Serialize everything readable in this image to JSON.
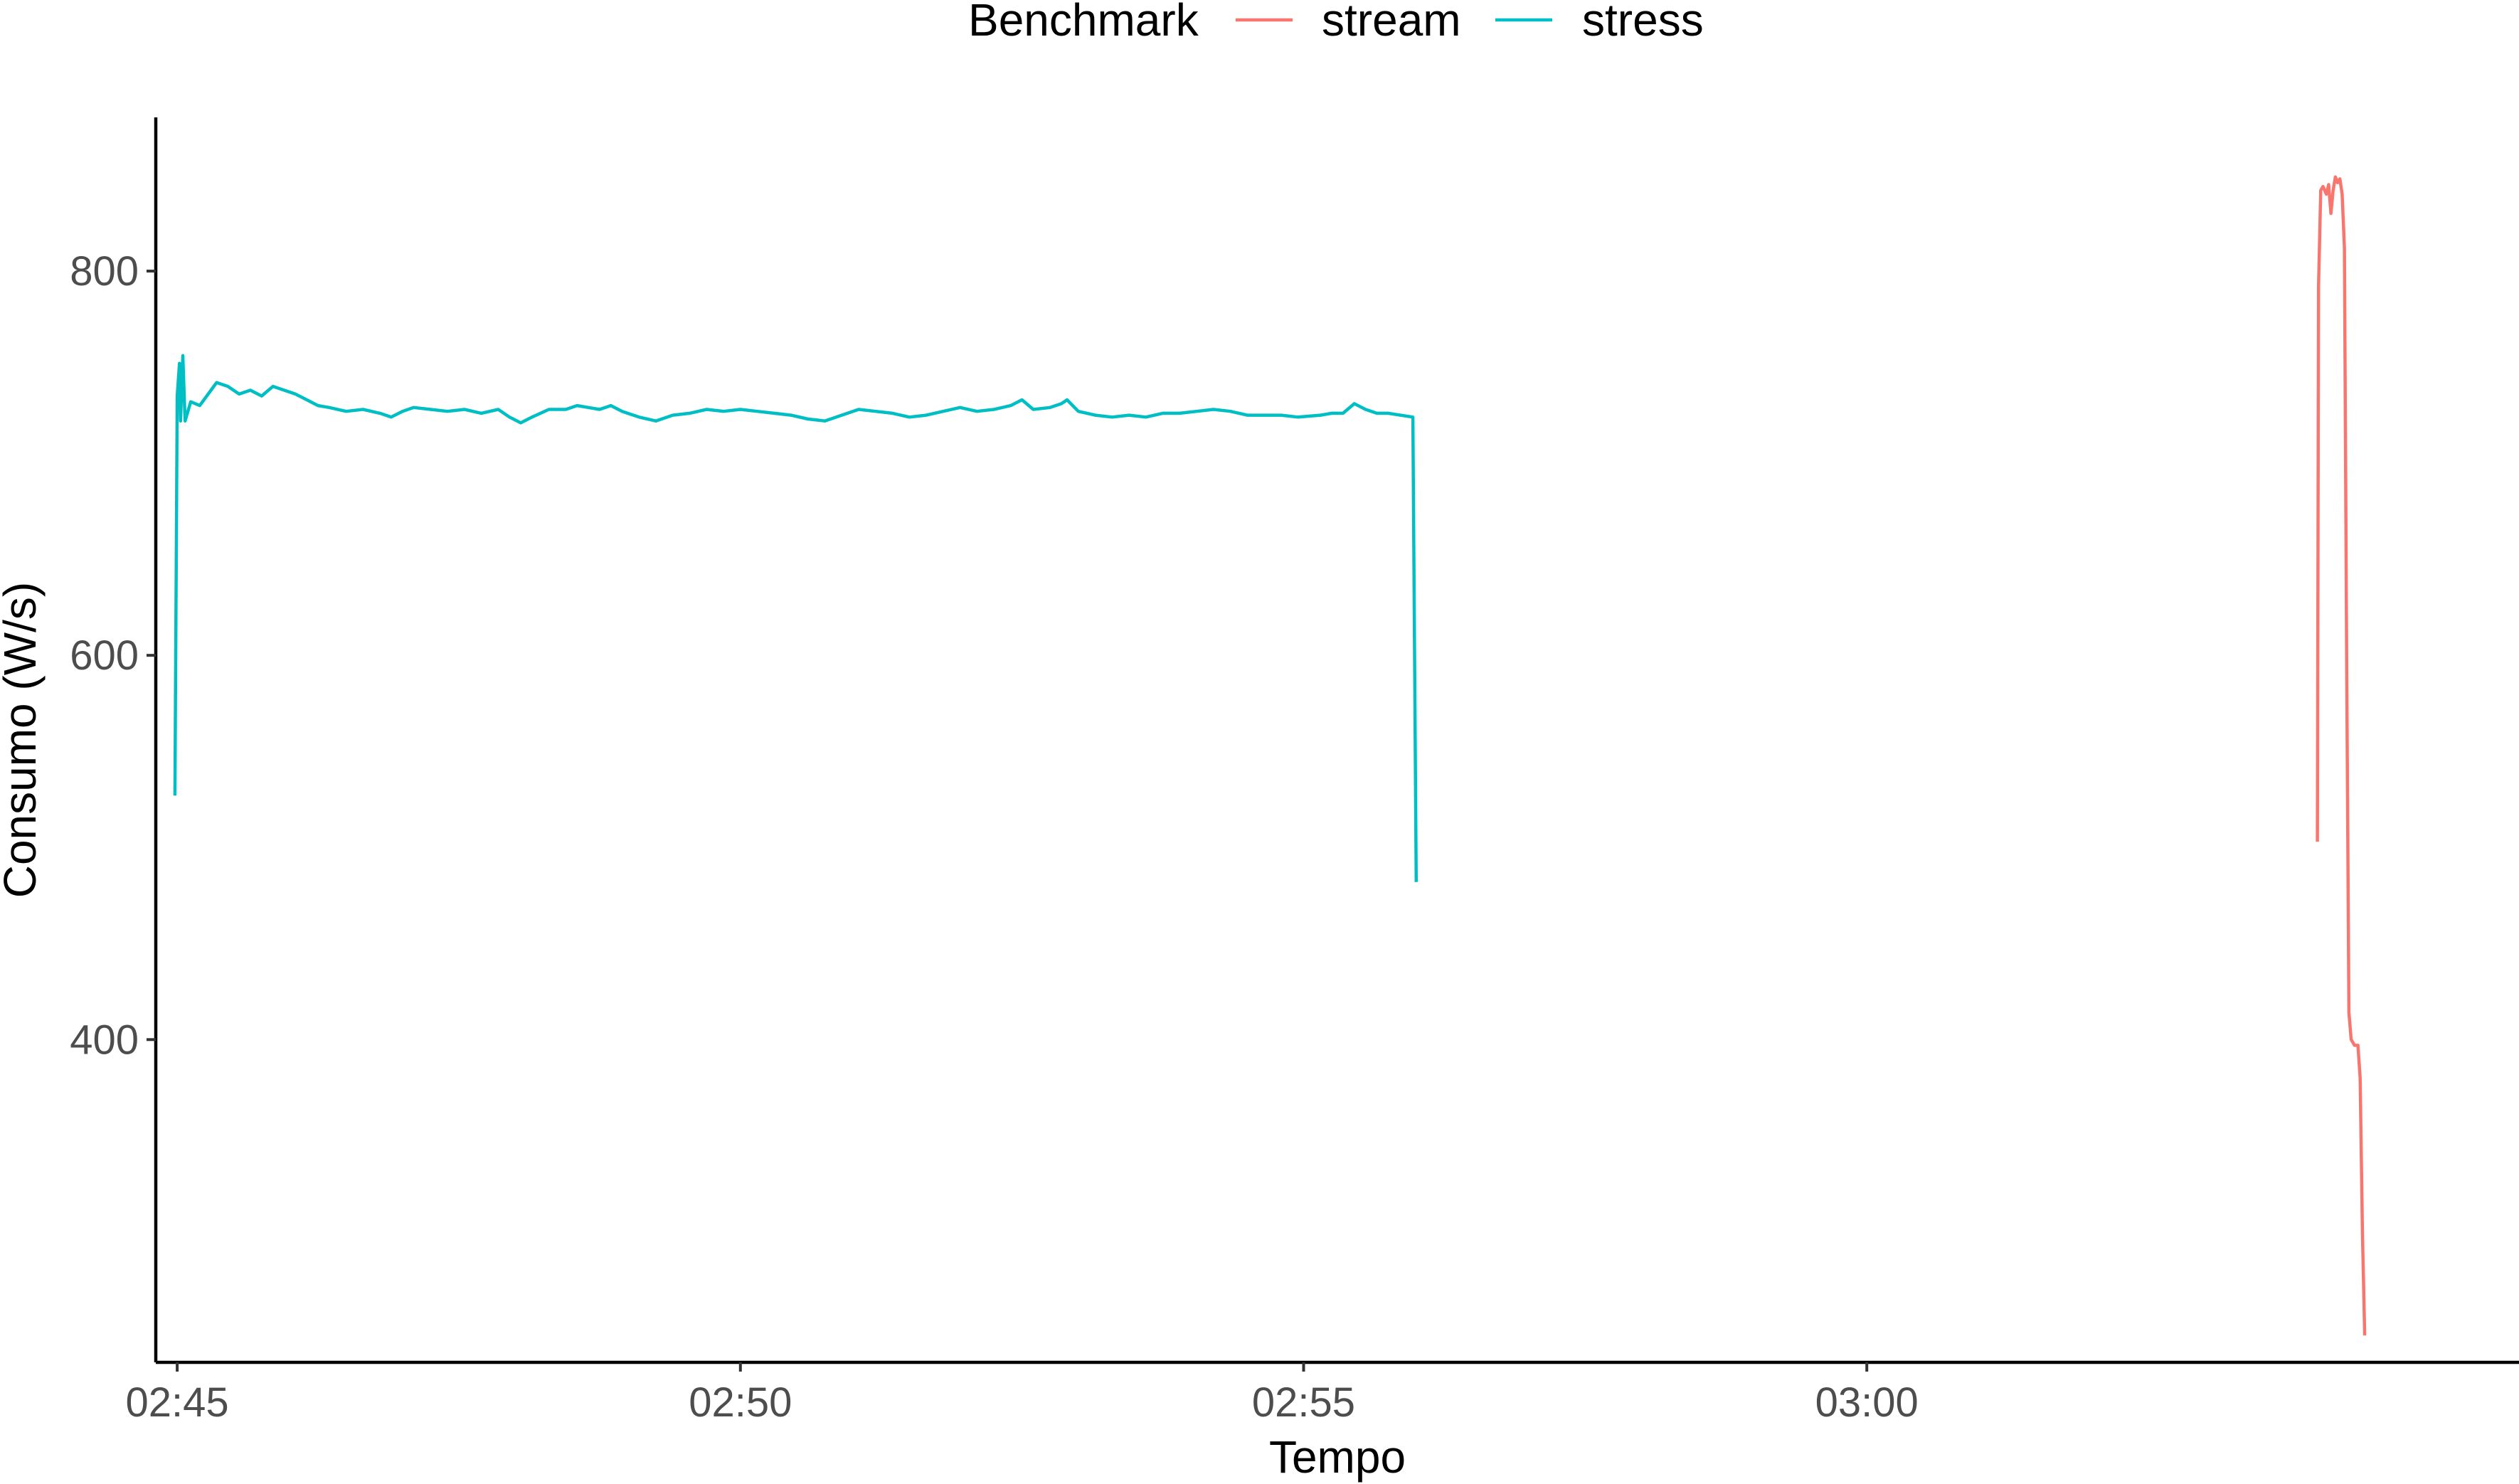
{
  "chart_data": {
    "type": "line",
    "title": "",
    "xlabel": "Tempo",
    "ylabel": "Consumo (W/s)",
    "x_unit": "minutes since 02:45",
    "xlim": [
      -0.19,
      20.79
    ],
    "ylim": [
      232,
      880
    ],
    "x_ticks": [
      {
        "value": 0,
        "label": "02:45"
      },
      {
        "value": 5,
        "label": "02:50"
      },
      {
        "value": 10,
        "label": "02:55"
      },
      {
        "value": 15,
        "label": "03:00"
      }
    ],
    "y_ticks": [
      {
        "value": 400,
        "label": "400"
      },
      {
        "value": 600,
        "label": "600"
      },
      {
        "value": 800,
        "label": "800"
      }
    ],
    "grid": false,
    "legend": {
      "title": "Benchmark",
      "position": "top",
      "entries": [
        {
          "label": "stream",
          "color": "#F8766D"
        },
        {
          "label": "stress",
          "color": "#00BFC4"
        }
      ]
    },
    "series": [
      {
        "name": "stress",
        "color": "#00BFC4",
        "points": [
          [
            -0.02,
            527
          ],
          [
            0.0,
            735
          ],
          [
            0.02,
            752
          ],
          [
            0.03,
            722
          ],
          [
            0.05,
            756
          ],
          [
            0.07,
            722
          ],
          [
            0.12,
            732
          ],
          [
            0.2,
            730
          ],
          [
            0.3,
            738
          ],
          [
            0.35,
            742
          ],
          [
            0.45,
            740
          ],
          [
            0.55,
            736
          ],
          [
            0.65,
            738
          ],
          [
            0.75,
            735
          ],
          [
            0.85,
            740
          ],
          [
            0.95,
            738
          ],
          [
            1.05,
            736
          ],
          [
            1.15,
            733
          ],
          [
            1.25,
            730
          ],
          [
            1.35,
            729
          ],
          [
            1.5,
            727
          ],
          [
            1.65,
            728
          ],
          [
            1.8,
            726
          ],
          [
            1.9,
            724
          ],
          [
            2.0,
            727
          ],
          [
            2.1,
            729
          ],
          [
            2.25,
            728
          ],
          [
            2.4,
            727
          ],
          [
            2.55,
            728
          ],
          [
            2.7,
            726
          ],
          [
            2.85,
            728
          ],
          [
            2.95,
            724
          ],
          [
            3.05,
            721
          ],
          [
            3.15,
            724
          ],
          [
            3.3,
            728
          ],
          [
            3.45,
            728
          ],
          [
            3.55,
            730
          ],
          [
            3.65,
            729
          ],
          [
            3.75,
            728
          ],
          [
            3.85,
            730
          ],
          [
            3.95,
            727
          ],
          [
            4.1,
            724
          ],
          [
            4.25,
            722
          ],
          [
            4.4,
            725
          ],
          [
            4.55,
            726
          ],
          [
            4.7,
            728
          ],
          [
            4.85,
            727
          ],
          [
            5.0,
            728
          ],
          [
            5.15,
            727
          ],
          [
            5.3,
            726
          ],
          [
            5.45,
            725
          ],
          [
            5.6,
            723
          ],
          [
            5.75,
            722
          ],
          [
            5.9,
            725
          ],
          [
            6.05,
            728
          ],
          [
            6.2,
            727
          ],
          [
            6.35,
            726
          ],
          [
            6.5,
            724
          ],
          [
            6.65,
            725
          ],
          [
            6.8,
            727
          ],
          [
            6.95,
            729
          ],
          [
            7.1,
            727
          ],
          [
            7.25,
            728
          ],
          [
            7.4,
            730
          ],
          [
            7.5,
            733
          ],
          [
            7.6,
            728
          ],
          [
            7.75,
            729
          ],
          [
            7.85,
            731
          ],
          [
            7.9,
            733
          ],
          [
            8.0,
            727
          ],
          [
            8.15,
            725
          ],
          [
            8.3,
            724
          ],
          [
            8.45,
            725
          ],
          [
            8.6,
            724
          ],
          [
            8.75,
            726
          ],
          [
            8.9,
            726
          ],
          [
            9.05,
            727
          ],
          [
            9.2,
            728
          ],
          [
            9.35,
            727
          ],
          [
            9.5,
            725
          ],
          [
            9.65,
            725
          ],
          [
            9.8,
            725
          ],
          [
            9.95,
            724
          ],
          [
            10.15,
            725
          ],
          [
            10.25,
            726
          ],
          [
            10.35,
            726
          ],
          [
            10.45,
            731
          ],
          [
            10.55,
            728
          ],
          [
            10.65,
            726
          ],
          [
            10.75,
            726
          ],
          [
            10.97,
            724
          ],
          [
            11.0,
            482
          ]
        ]
      },
      {
        "name": "stream",
        "color": "#F8766D",
        "points": [
          [
            19.0,
            503
          ],
          [
            19.01,
            792
          ],
          [
            19.03,
            842
          ],
          [
            19.05,
            844
          ],
          [
            19.08,
            840
          ],
          [
            19.1,
            845
          ],
          [
            19.12,
            830
          ],
          [
            19.14,
            842
          ],
          [
            19.16,
            849
          ],
          [
            19.18,
            846
          ],
          [
            19.2,
            848
          ],
          [
            19.22,
            840
          ],
          [
            19.24,
            812
          ],
          [
            19.26,
            600
          ],
          [
            19.28,
            414
          ],
          [
            19.3,
            400
          ],
          [
            19.33,
            397
          ],
          [
            19.36,
            397
          ],
          [
            19.38,
            380
          ],
          [
            19.4,
            300
          ],
          [
            19.42,
            246
          ]
        ]
      }
    ]
  }
}
